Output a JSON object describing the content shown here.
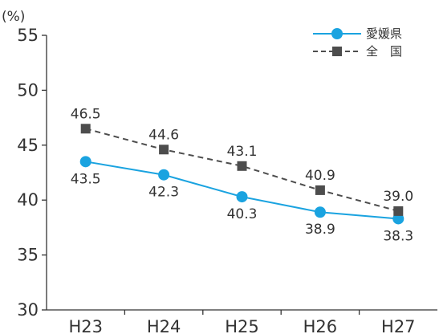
{
  "chart_data": {
    "type": "line",
    "title": "",
    "xlabel": "",
    "ylabel": "(%)",
    "ylim": [
      30,
      55
    ],
    "yticks": [
      "30",
      "35",
      "40",
      "45",
      "50",
      "55"
    ],
    "categories": [
      "H23",
      "H24",
      "H25",
      "H26",
      "H27"
    ],
    "grid": false,
    "legend_position": "top-right",
    "series": [
      {
        "name": "愛媛県",
        "values": [
          43.5,
          42.3,
          40.3,
          38.9,
          38.3
        ],
        "labels": [
          "43.5",
          "42.3",
          "40.3",
          "38.9",
          "38.3"
        ],
        "color": "#1aa3e0",
        "marker": "circle",
        "line_style": "solid"
      },
      {
        "name": "全　国",
        "values": [
          46.5,
          44.6,
          43.1,
          40.9,
          39.0
        ],
        "labels": [
          "46.5",
          "44.6",
          "43.1",
          "40.9",
          "39.0"
        ],
        "color": "#4d4d4d",
        "marker": "square",
        "line_style": "dashed"
      }
    ]
  }
}
